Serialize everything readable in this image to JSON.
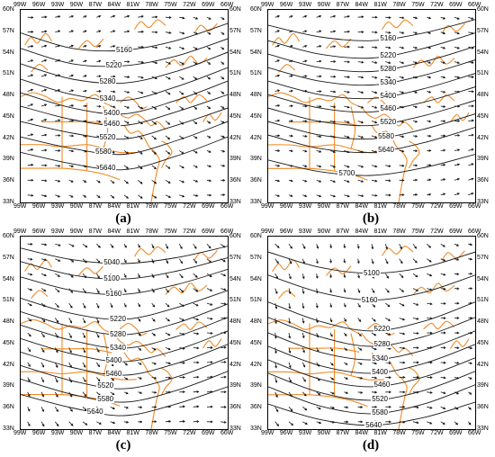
{
  "panels": [
    {
      "id": "a",
      "label": "(a)",
      "contours": [
        {
          "value": "5160",
          "ys": [
            0.88,
            0.8,
            0.79,
            0.84,
            0.93
          ],
          "lx": 0.5
        },
        {
          "value": "5220",
          "ys": [
            0.8,
            0.72,
            0.71,
            0.76,
            0.85
          ],
          "lx": 0.45
        },
        {
          "value": "5280",
          "ys": [
            0.72,
            0.64,
            0.62,
            0.68,
            0.78
          ],
          "lx": 0.42
        },
        {
          "value": "5340",
          "ys": [
            0.64,
            0.56,
            0.53,
            0.6,
            0.7
          ],
          "lx": 0.42
        },
        {
          "value": "5400",
          "ys": [
            0.57,
            0.49,
            0.46,
            0.53,
            0.63
          ],
          "lx": 0.44
        },
        {
          "value": "5460",
          "ys": [
            0.5,
            0.43,
            0.4,
            0.47,
            0.56
          ],
          "lx": 0.44
        },
        {
          "value": "5520",
          "ys": [
            0.42,
            0.36,
            0.33,
            0.4,
            0.49
          ],
          "lx": 0.42
        },
        {
          "value": "5580",
          "ys": [
            0.34,
            0.28,
            0.25,
            0.32,
            0.42
          ],
          "lx": 0.4
        },
        {
          "value": "5640",
          "ys": [
            0.26,
            0.2,
            0.17,
            0.24,
            0.34
          ],
          "lx": 0.42
        }
      ],
      "wind": {
        "scale": 4,
        "dir_base": -10,
        "dir_amp": 30
      }
    },
    {
      "id": "b",
      "label": "(b)",
      "contours": [
        {
          "value": "5160",
          "ys": [
            0.92,
            0.86,
            0.84,
            0.88,
            0.95
          ],
          "lx": 0.58
        },
        {
          "value": "5220",
          "ys": [
            0.84,
            0.77,
            0.75,
            0.8,
            0.88
          ],
          "lx": 0.58
        },
        {
          "value": "5280",
          "ys": [
            0.77,
            0.7,
            0.68,
            0.73,
            0.81
          ],
          "lx": 0.58
        },
        {
          "value": "5340",
          "ys": [
            0.7,
            0.63,
            0.61,
            0.66,
            0.74
          ],
          "lx": 0.58
        },
        {
          "value": "5400",
          "ys": [
            0.63,
            0.56,
            0.54,
            0.59,
            0.67
          ],
          "lx": 0.58
        },
        {
          "value": "5460",
          "ys": [
            0.56,
            0.49,
            0.47,
            0.52,
            0.6
          ],
          "lx": 0.58
        },
        {
          "value": "5520",
          "ys": [
            0.49,
            0.42,
            0.4,
            0.45,
            0.53
          ],
          "lx": 0.58
        },
        {
          "value": "5580",
          "ys": [
            0.42,
            0.35,
            0.33,
            0.38,
            0.46
          ],
          "lx": 0.57
        },
        {
          "value": "5640",
          "ys": [
            0.35,
            0.28,
            0.26,
            0.31,
            0.39
          ],
          "lx": 0.57
        },
        {
          "value": "5700",
          "ys": [
            0.22,
            0.16,
            0.14,
            0.18,
            0.25
          ],
          "lx": 0.38
        }
      ],
      "wind": {
        "scale": 4,
        "dir_base": 0,
        "dir_amp": 20
      }
    },
    {
      "id": "c",
      "label": "(c)",
      "contours": [
        {
          "value": "5040",
          "ys": [
            0.94,
            0.88,
            0.86,
            0.89,
            0.95
          ],
          "lx": 0.44
        },
        {
          "value": "5100",
          "ys": [
            0.87,
            0.8,
            0.78,
            0.82,
            0.89
          ],
          "lx": 0.44
        },
        {
          "value": "5160",
          "ys": [
            0.79,
            0.72,
            0.7,
            0.75,
            0.83
          ],
          "lx": 0.45
        },
        {
          "value": "5220",
          "ys": [
            0.68,
            0.6,
            0.57,
            0.63,
            0.72
          ],
          "lx": 0.47
        },
        {
          "value": "5280",
          "ys": [
            0.61,
            0.53,
            0.49,
            0.55,
            0.65
          ],
          "lx": 0.47
        },
        {
          "value": "5340",
          "ys": [
            0.54,
            0.46,
            0.42,
            0.48,
            0.58
          ],
          "lx": 0.47
        },
        {
          "value": "5400",
          "ys": [
            0.47,
            0.39,
            0.35,
            0.41,
            0.51
          ],
          "lx": 0.45
        },
        {
          "value": "5460",
          "ys": [
            0.4,
            0.32,
            0.28,
            0.34,
            0.44
          ],
          "lx": 0.45
        },
        {
          "value": "5520",
          "ys": [
            0.33,
            0.25,
            0.21,
            0.27,
            0.37
          ],
          "lx": 0.41
        },
        {
          "value": "5580",
          "ys": [
            0.26,
            0.18,
            0.14,
            0.2,
            0.3
          ],
          "lx": 0.41
        },
        {
          "value": "5640",
          "ys": [
            0.18,
            0.11,
            0.07,
            0.13,
            0.22
          ],
          "lx": 0.36
        }
      ],
      "wind": {
        "scale": 4,
        "dir_base": -30,
        "dir_amp": 35
      }
    },
    {
      "id": "d",
      "label": "(d)",
      "contours": [
        {
          "value": "5100",
          "ys": [
            0.92,
            0.84,
            0.81,
            0.84,
            0.92
          ],
          "lx": 0.5
        },
        {
          "value": "5160",
          "ys": [
            0.8,
            0.71,
            0.67,
            0.71,
            0.8
          ],
          "lx": 0.49
        },
        {
          "value": "5220",
          "ys": [
            0.66,
            0.56,
            0.51,
            0.56,
            0.66
          ],
          "lx": 0.55
        },
        {
          "value": "5280",
          "ys": [
            0.58,
            0.48,
            0.43,
            0.48,
            0.58
          ],
          "lx": 0.55
        },
        {
          "value": "5340",
          "ys": [
            0.5,
            0.4,
            0.36,
            0.41,
            0.51
          ],
          "lx": 0.54
        },
        {
          "value": "5400",
          "ys": [
            0.43,
            0.33,
            0.29,
            0.34,
            0.44
          ],
          "lx": 0.54
        },
        {
          "value": "5460",
          "ys": [
            0.36,
            0.26,
            0.22,
            0.27,
            0.37
          ],
          "lx": 0.55
        },
        {
          "value": "5520",
          "ys": [
            0.29,
            0.19,
            0.15,
            0.2,
            0.3
          ],
          "lx": 0.54
        },
        {
          "value": "5580",
          "ys": [
            0.22,
            0.12,
            0.08,
            0.13,
            0.23
          ],
          "lx": 0.54
        },
        {
          "value": "5640",
          "ys": [
            0.13,
            0.05,
            0.02,
            0.06,
            0.14
          ],
          "lx": 0.51
        }
      ],
      "wind": {
        "scale": 4,
        "dir_base": -40,
        "dir_amp": 40
      }
    }
  ],
  "lon_ticks": [
    "99W",
    "96W",
    "93W",
    "90W",
    "87W",
    "84W",
    "81W",
    "78W",
    "75W",
    "72W",
    "69W",
    "66W"
  ],
  "lat_ticks": [
    "60N",
    "57N",
    "54N",
    "51N",
    "48N",
    "45N",
    "42N",
    "39N",
    "36N",
    "33N"
  ],
  "colors": {
    "coast": "#f08a24",
    "contour": "#1a1a1a",
    "arrow": "#111111"
  }
}
